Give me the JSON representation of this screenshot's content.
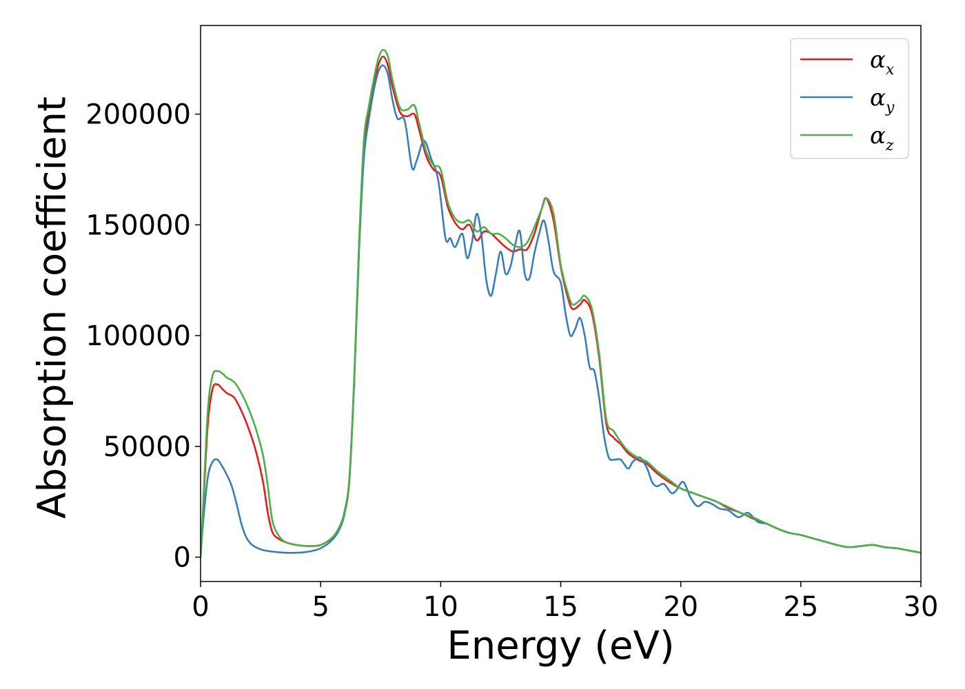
{
  "chart_data": {
    "type": "line",
    "xlabel": "Energy (eV)",
    "ylabel": "Absorption coefficient",
    "xlim": [
      0,
      30
    ],
    "ylim": [
      -11000,
      240000
    ],
    "xticks": [
      0,
      5,
      10,
      15,
      20,
      25,
      30
    ],
    "xtick_labels": [
      "0",
      "5",
      "10",
      "15",
      "20",
      "25",
      "30"
    ],
    "yticks": [
      0,
      50000,
      100000,
      150000,
      200000
    ],
    "ytick_labels": [
      "0",
      "50000",
      "100000",
      "150000",
      "200000"
    ],
    "grid": false,
    "legend_position": "top-right",
    "series": [
      {
        "name": "α_x",
        "label_base": "α",
        "label_sub": "x",
        "color": "#e41a1c",
        "x": [
          0,
          0.1,
          0.3,
          0.5,
          0.7,
          0.9,
          1.1,
          1.4,
          1.7,
          2.0,
          2.3,
          2.6,
          2.8,
          3.0,
          3.3,
          3.6,
          4.0,
          4.5,
          5.0,
          5.5,
          5.8,
          6.0,
          6.2,
          6.4,
          6.6,
          6.8,
          7.0,
          7.2,
          7.4,
          7.6,
          7.8,
          8.0,
          8.3,
          8.6,
          8.9,
          9.1,
          9.4,
          9.7,
          10.0,
          10.3,
          10.6,
          10.9,
          11.2,
          11.5,
          11.8,
          12.1,
          12.4,
          12.7,
          13.0,
          13.3,
          13.6,
          13.9,
          14.2,
          14.4,
          14.7,
          15.0,
          15.3,
          15.5,
          15.8,
          16.0,
          16.3,
          16.6,
          16.9,
          17.2,
          17.5,
          17.8,
          18.2,
          18.6,
          19.0,
          19.5,
          20.0,
          20.5,
          21.0,
          21.5,
          22.0,
          22.5,
          23.0,
          23.5,
          24.0,
          24.5,
          25.0,
          25.5,
          26.0,
          26.5,
          27.0,
          27.5,
          28.0,
          28.5,
          29.0,
          29.5,
          30.0
        ],
        "y": [
          0,
          20000,
          60000,
          76000,
          78000,
          76000,
          74000,
          72000,
          66000,
          58000,
          48000,
          34000,
          20000,
          11000,
          8000,
          6500,
          5500,
          5000,
          5500,
          9000,
          14000,
          20000,
          35000,
          80000,
          140000,
          185000,
          200000,
          212000,
          222000,
          226000,
          222000,
          212000,
          201000,
          199000,
          200000,
          193000,
          181000,
          175000,
          172000,
          158000,
          151000,
          148000,
          150000,
          143000,
          147000,
          146000,
          143000,
          140000,
          138000,
          139000,
          139000,
          146000,
          157000,
          162000,
          152000,
          131000,
          117000,
          112000,
          114000,
          116000,
          110000,
          90000,
          60000,
          54000,
          51000,
          47000,
          44000,
          42000,
          38000,
          34000,
          31000,
          29000,
          27000,
          25000,
          22000,
          20000,
          17500,
          15500,
          13000,
          11000,
          10000,
          8500,
          7000,
          5500,
          4500,
          5000,
          5500,
          4500,
          4000,
          3000,
          2000
        ]
      },
      {
        "name": "α_y",
        "label_base": "α",
        "label_sub": "y",
        "color": "#377eb8",
        "x": [
          0,
          0.1,
          0.3,
          0.5,
          0.7,
          0.9,
          1.1,
          1.3,
          1.5,
          1.7,
          1.9,
          2.1,
          2.3,
          2.6,
          3.0,
          3.5,
          4.0,
          4.5,
          5.0,
          5.5,
          5.8,
          6.0,
          6.2,
          6.4,
          6.6,
          6.8,
          7.0,
          7.2,
          7.4,
          7.6,
          7.8,
          8.0,
          8.2,
          8.5,
          8.8,
          9.0,
          9.3,
          9.6,
          9.9,
          10.2,
          10.4,
          10.6,
          10.9,
          11.1,
          11.3,
          11.5,
          11.7,
          11.9,
          12.1,
          12.3,
          12.5,
          12.7,
          12.9,
          13.1,
          13.3,
          13.5,
          13.7,
          13.9,
          14.1,
          14.3,
          14.5,
          14.7,
          15.0,
          15.2,
          15.4,
          15.6,
          15.8,
          16.0,
          16.2,
          16.4,
          16.6,
          16.8,
          17.0,
          17.2,
          17.5,
          17.8,
          18.0,
          18.3,
          18.6,
          18.8,
          19.0,
          19.3,
          19.6,
          19.8,
          20.1,
          20.4,
          20.7,
          21.0,
          21.3,
          21.6,
          22.0,
          22.4,
          22.8,
          23.2,
          23.6,
          24.0,
          24.5,
          25.0,
          25.5,
          26.0,
          26.5,
          27.0,
          27.5,
          28.0,
          28.5,
          29.0,
          29.5,
          30.0
        ],
        "y": [
          0,
          15000,
          36000,
          43000,
          44000,
          41000,
          37000,
          32000,
          24000,
          15000,
          9000,
          6000,
          4500,
          3200,
          2500,
          2000,
          2000,
          2500,
          4000,
          8000,
          13000,
          20000,
          36000,
          80000,
          138000,
          180000,
          197000,
          210000,
          219000,
          222000,
          218000,
          206000,
          198000,
          197000,
          176000,
          179000,
          188000,
          180000,
          170000,
          144000,
          144000,
          140000,
          146000,
          135000,
          142000,
          155000,
          145000,
          125000,
          118000,
          128000,
          138000,
          128000,
          131000,
          141000,
          147000,
          128000,
          126000,
          137000,
          146000,
          152000,
          142000,
          129000,
          124000,
          110000,
          100000,
          103000,
          108000,
          100000,
          86000,
          84000,
          72000,
          55000,
          45000,
          44000,
          44000,
          40000,
          43000,
          45000,
          40000,
          34000,
          32000,
          33000,
          29000,
          30000,
          34000,
          27000,
          23000,
          25000,
          24000,
          22000,
          21000,
          18000,
          20000,
          16000,
          15000,
          13000,
          11000,
          10000,
          8500,
          7000,
          5500,
          4500,
          5000,
          5500,
          4500,
          4000,
          3000,
          2000
        ]
      },
      {
        "name": "α_z",
        "label_base": "α",
        "label_sub": "z",
        "color": "#4daf4a",
        "x": [
          0,
          0.1,
          0.3,
          0.5,
          0.7,
          0.9,
          1.1,
          1.4,
          1.7,
          2.0,
          2.3,
          2.6,
          2.8,
          3.0,
          3.3,
          3.6,
          4.0,
          4.5,
          5.0,
          5.5,
          5.8,
          6.0,
          6.2,
          6.4,
          6.6,
          6.8,
          7.0,
          7.2,
          7.4,
          7.6,
          7.8,
          8.0,
          8.3,
          8.6,
          8.9,
          9.1,
          9.4,
          9.7,
          10.0,
          10.3,
          10.6,
          10.9,
          11.2,
          11.5,
          11.8,
          12.1,
          12.4,
          12.7,
          13.0,
          13.3,
          13.6,
          13.9,
          14.2,
          14.4,
          14.7,
          15.0,
          15.3,
          15.5,
          15.8,
          16.0,
          16.3,
          16.6,
          16.9,
          17.2,
          17.5,
          17.8,
          18.2,
          18.6,
          19.0,
          19.5,
          20.0,
          20.5,
          21.0,
          21.5,
          22.0,
          22.5,
          23.0,
          23.5,
          24.0,
          24.5,
          25.0,
          25.5,
          26.0,
          26.5,
          27.0,
          27.5,
          28.0,
          28.5,
          29.0,
          29.5,
          30.0
        ],
        "y": [
          0,
          22000,
          66000,
          82000,
          84000,
          83000,
          81000,
          79000,
          74000,
          67000,
          58000,
          46000,
          32000,
          16000,
          9000,
          6500,
          5500,
          5000,
          5500,
          9000,
          14000,
          21000,
          36000,
          82000,
          142000,
          188000,
          203000,
          215000,
          225000,
          229000,
          226000,
          215000,
          203000,
          202000,
          204000,
          196000,
          183000,
          177000,
          175000,
          160000,
          153000,
          151000,
          152000,
          147000,
          149000,
          146000,
          146000,
          144000,
          141000,
          140000,
          142000,
          149000,
          157000,
          162000,
          155000,
          132000,
          119000,
          114000,
          116000,
          118000,
          112000,
          92000,
          62000,
          57000,
          52000,
          48000,
          45000,
          43000,
          39000,
          35000,
          31000,
          29000,
          27000,
          25000,
          22500,
          20000,
          18000,
          15500,
          13000,
          11000,
          10000,
          8500,
          7000,
          5500,
          4500,
          5000,
          5500,
          4500,
          4000,
          3000,
          2000
        ]
      }
    ]
  }
}
